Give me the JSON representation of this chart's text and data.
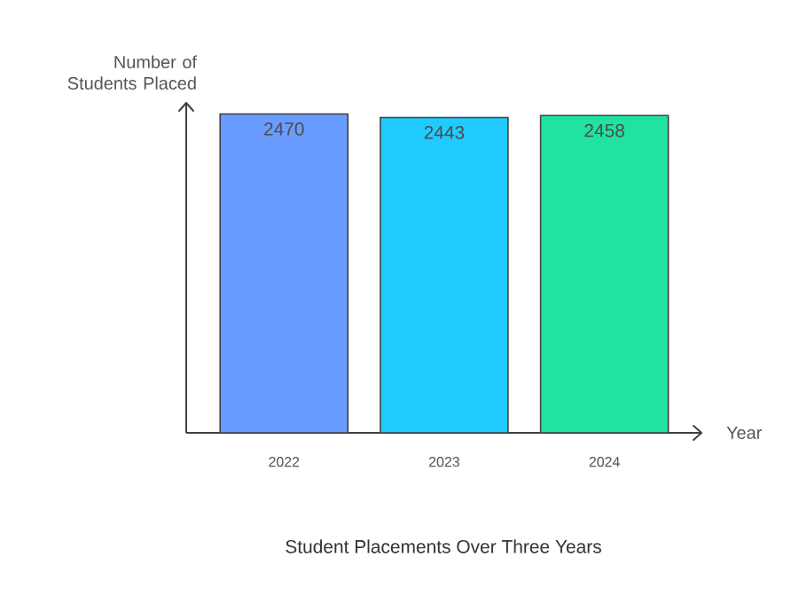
{
  "chart_data": {
    "type": "bar",
    "title": "Student Placements Over Three Years",
    "xlabel": "Year",
    "ylabel": "Number of Students Placed",
    "categories": [
      "2022",
      "2023",
      "2024"
    ],
    "values": [
      2470,
      2443,
      2458
    ],
    "colors": [
      "#6a9cff",
      "#1fcbff",
      "#1fe39e"
    ],
    "data_labels": true
  }
}
